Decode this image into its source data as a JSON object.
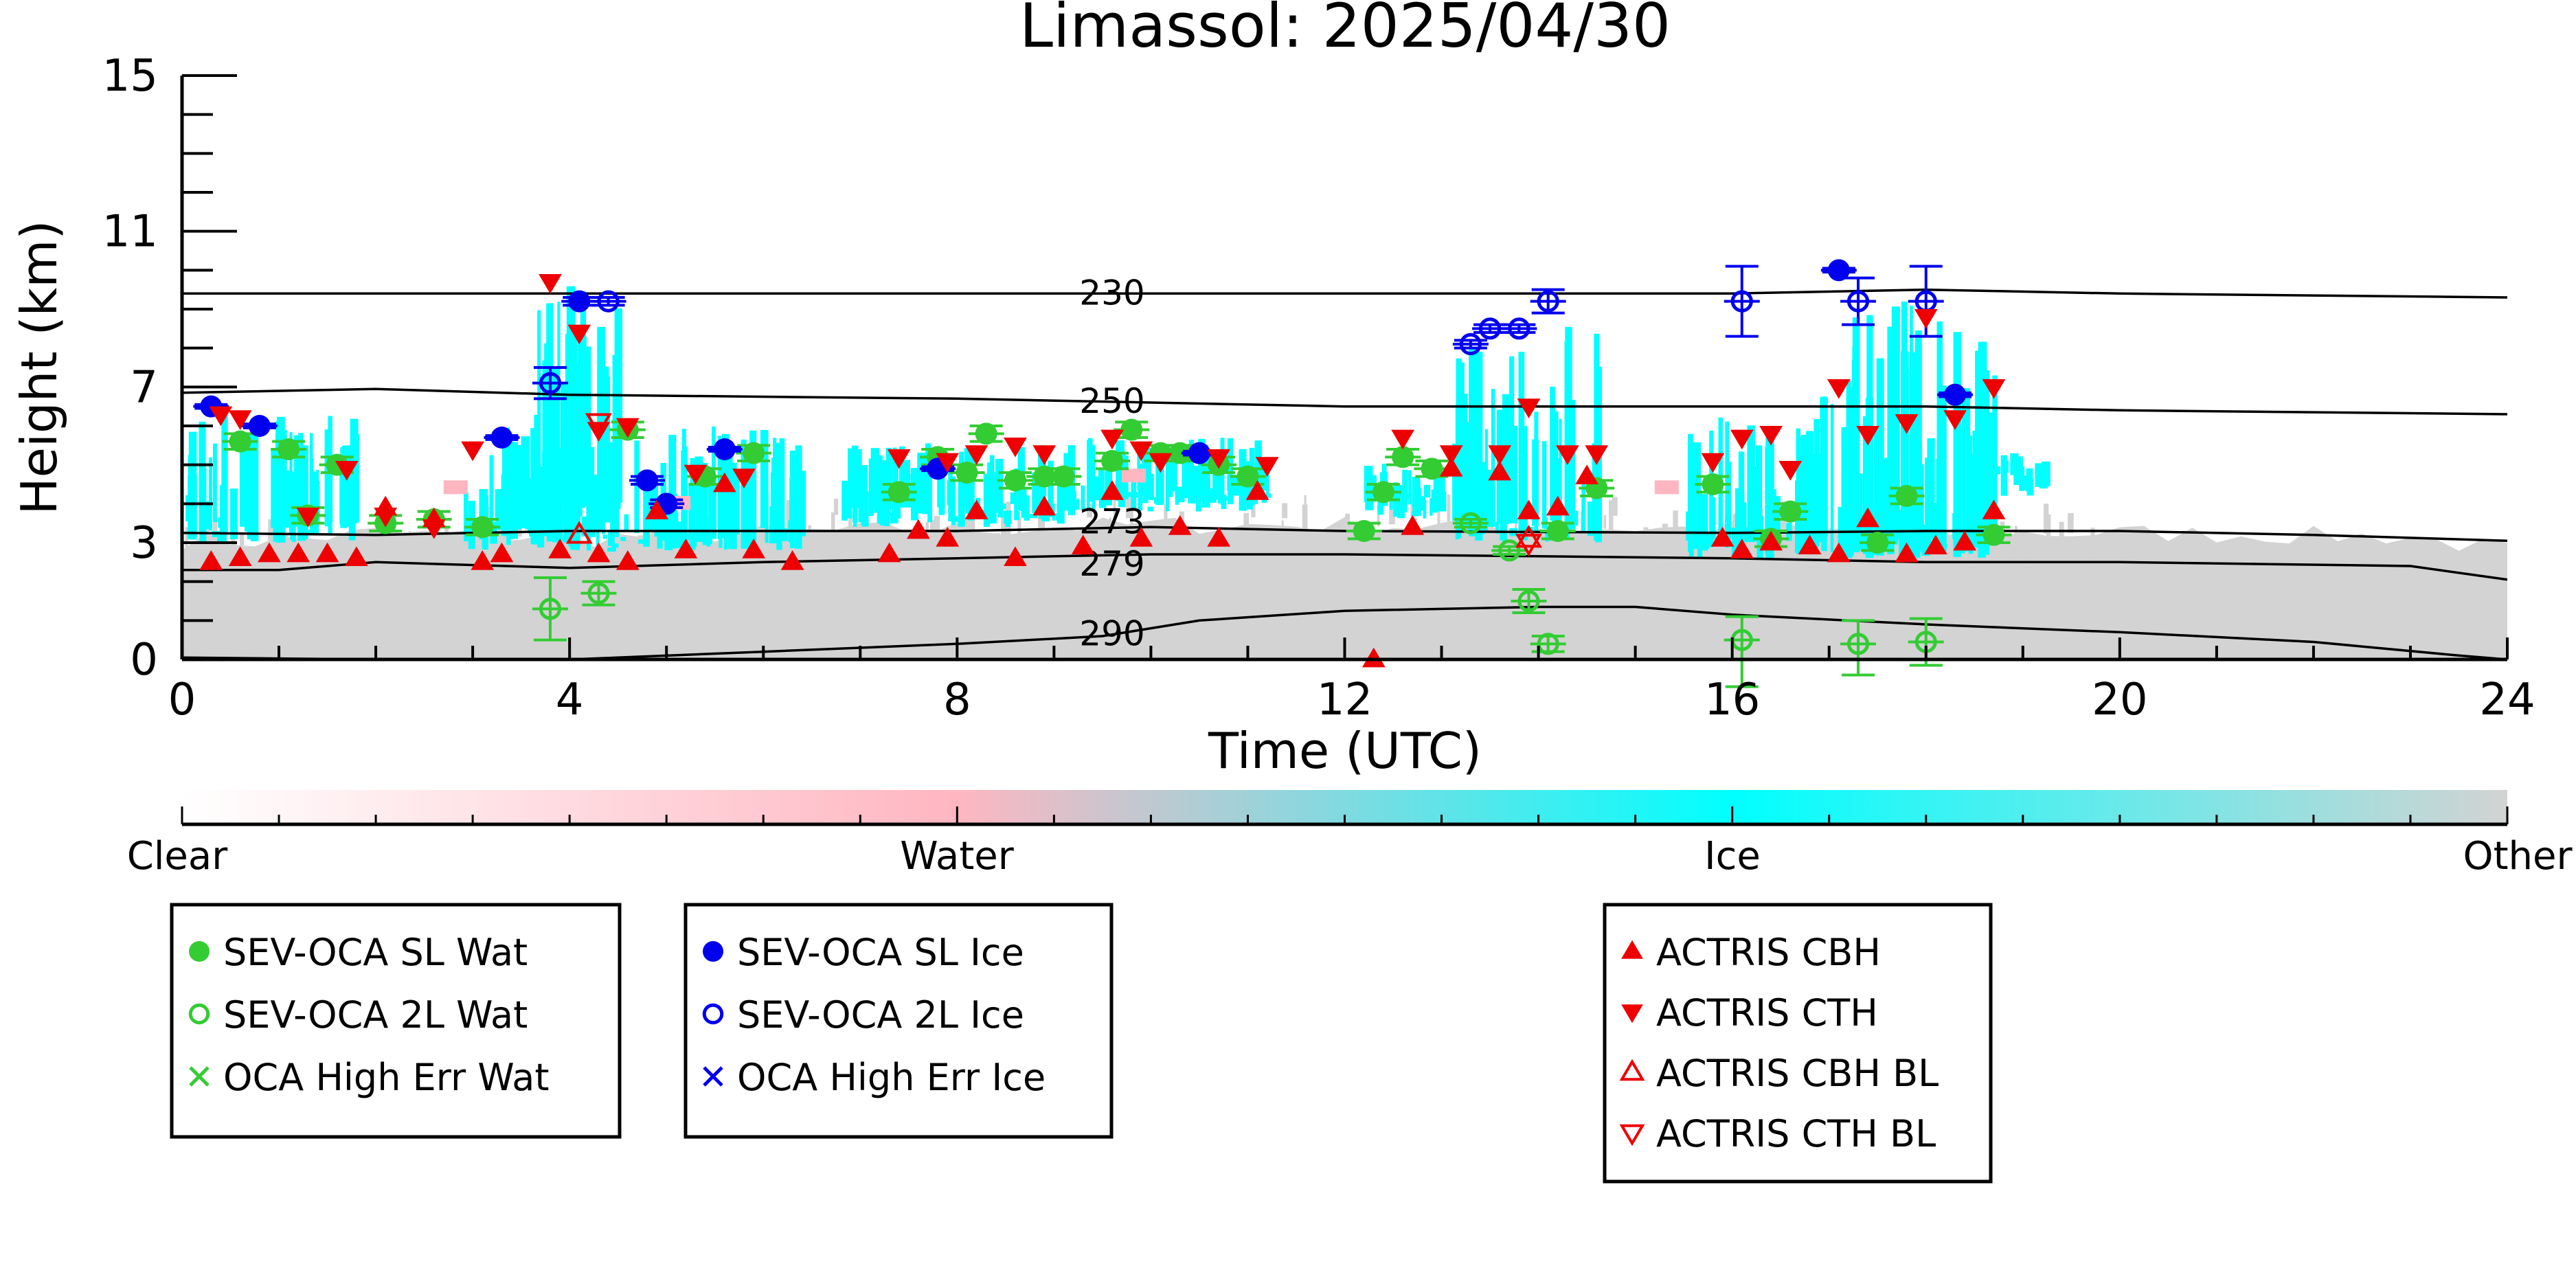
{
  "chart_data": {
    "type": "scatter",
    "title": "Limassol: 2025/04/30",
    "xlabel": "Time (UTC)",
    "ylabel": "Height (km)",
    "xlim": [
      0,
      24
    ],
    "ylim": [
      0,
      15
    ],
    "xticks": [
      0,
      4,
      8,
      12,
      16,
      20,
      24
    ],
    "yticks": [
      0,
      3,
      7,
      11,
      15
    ],
    "colorbar": {
      "labels": [
        "Clear",
        "Water",
        "Ice",
        "Other"
      ],
      "colors": [
        "#ffffff",
        "#ffb6c1",
        "#00ffff",
        "#d3d3d3"
      ]
    },
    "isotherms": [
      {
        "label": "230",
        "x": [
          0,
          4,
          8,
          12,
          16,
          18,
          20,
          24
        ],
        "y": [
          9.4,
          9.4,
          9.4,
          9.4,
          9.4,
          9.5,
          9.4,
          9.3
        ]
      },
      {
        "label": "250",
        "x": [
          0,
          2,
          4,
          8,
          12,
          16,
          18,
          20,
          24
        ],
        "y": [
          6.85,
          6.95,
          6.8,
          6.7,
          6.5,
          6.5,
          6.5,
          6.4,
          6.3
        ]
      },
      {
        "label": "273",
        "x": [
          0,
          2,
          4,
          8,
          10,
          12,
          16,
          18,
          20,
          22,
          24
        ],
        "y": [
          3.25,
          3.2,
          3.3,
          3.3,
          3.4,
          3.3,
          3.25,
          3.3,
          3.3,
          3.2,
          3.05
        ]
      },
      {
        "label": "279",
        "x": [
          0,
          1,
          2,
          4,
          6,
          8,
          10,
          12,
          14,
          16,
          18,
          20,
          23,
          24
        ],
        "y": [
          2.3,
          2.3,
          2.5,
          2.35,
          2.5,
          2.6,
          2.7,
          2.7,
          2.65,
          2.6,
          2.5,
          2.5,
          2.4,
          2.05
        ]
      },
      {
        "label": "290",
        "x": [
          0,
          2,
          4,
          6,
          8,
          9.5,
          10.5,
          12,
          14,
          15,
          16,
          18,
          20,
          22,
          23.5,
          24
        ],
        "y": [
          0.05,
          0,
          0,
          0.2,
          0.4,
          0.6,
          1.0,
          1.25,
          1.35,
          1.35,
          1.15,
          0.9,
          0.7,
          0.45,
          0.1,
          0.0
        ]
      }
    ],
    "series": [
      {
        "name": "SEV-OCA SL Wat",
        "color": "#33cc33",
        "marker": "filled-circle",
        "points": [
          [
            0.6,
            5.6
          ],
          [
            1.1,
            5.4
          ],
          [
            1.6,
            5.0
          ],
          [
            2.1,
            3.5
          ],
          [
            2.6,
            3.6
          ],
          [
            3.1,
            3.4
          ],
          [
            1.3,
            3.7
          ],
          [
            4.6,
            5.9
          ],
          [
            5.4,
            4.7
          ],
          [
            5.9,
            5.3
          ],
          [
            7.4,
            4.3
          ],
          [
            7.8,
            5.2
          ],
          [
            8.3,
            5.8
          ],
          [
            8.1,
            4.8
          ],
          [
            8.6,
            4.6
          ],
          [
            8.9,
            4.7
          ],
          [
            9.1,
            4.7
          ],
          [
            9.6,
            5.1
          ],
          [
            9.8,
            5.9
          ],
          [
            10.1,
            5.3
          ],
          [
            10.3,
            5.3
          ],
          [
            10.7,
            5.0
          ],
          [
            11.0,
            4.7
          ],
          [
            12.2,
            3.3
          ],
          [
            12.4,
            4.3
          ],
          [
            12.6,
            5.2
          ],
          [
            12.9,
            4.9
          ],
          [
            14.2,
            3.3
          ],
          [
            14.6,
            4.4
          ],
          [
            15.8,
            4.5
          ],
          [
            16.4,
            3.1
          ],
          [
            16.6,
            3.8
          ],
          [
            17.5,
            3.0
          ],
          [
            17.8,
            4.2
          ],
          [
            18.7,
            3.2
          ]
        ],
        "err": [
          [
            0.2,
            0.2
          ],
          [
            0.2,
            0.2
          ],
          [
            0.2,
            0.2
          ],
          [
            0.2,
            0.2
          ],
          [
            0.2,
            0.2
          ],
          [
            0.2,
            0.2
          ],
          [
            0.2,
            0.2
          ],
          [
            0.2,
            0.2
          ],
          [
            0.2,
            0.2
          ],
          [
            0.2,
            0.2
          ],
          [
            0.2,
            0.2
          ],
          [
            0.2,
            0.2
          ],
          [
            0.2,
            0.2
          ],
          [
            0.2,
            0.2
          ],
          [
            0.2,
            0.2
          ],
          [
            0.2,
            0.2
          ],
          [
            0.2,
            0.2
          ],
          [
            0.2,
            0.2
          ],
          [
            0.2,
            0.2
          ],
          [
            0.2,
            0.2
          ],
          [
            0.2,
            0.2
          ],
          [
            0.2,
            0.2
          ],
          [
            0.2,
            0.2
          ],
          [
            0.2,
            0.2
          ],
          [
            0.2,
            0.2
          ],
          [
            0.2,
            0.2
          ],
          [
            0.2,
            0.2
          ],
          [
            0.2,
            0.2
          ],
          [
            0.2,
            0.2
          ],
          [
            0.2,
            0.2
          ],
          [
            0.2,
            0.2
          ],
          [
            0.2,
            0.2
          ],
          [
            0.2,
            0.2
          ],
          [
            0.2,
            0.2
          ],
          [
            0.2,
            0.2
          ]
        ]
      },
      {
        "name": "SEV-OCA 2L Wat",
        "color": "#33cc33",
        "marker": "open-circle",
        "points": [
          [
            3.8,
            1.3
          ],
          [
            4.3,
            1.7
          ],
          [
            13.3,
            3.5
          ],
          [
            13.7,
            2.8
          ],
          [
            13.9,
            1.5
          ],
          [
            14.1,
            0.4
          ],
          [
            16.1,
            0.5
          ],
          [
            17.3,
            0.4
          ],
          [
            18.0,
            0.45
          ]
        ],
        "err": [
          [
            0.8,
            0.8
          ],
          [
            0.3,
            0.3
          ],
          [
            0.1,
            0.1
          ],
          [
            0.1,
            0.1
          ],
          [
            0.3,
            0.3
          ],
          [
            0.2,
            0.2
          ],
          [
            1.2,
            0.6
          ],
          [
            0.8,
            0.6
          ],
          [
            0.6,
            0.6
          ]
        ]
      },
      {
        "name": "SEV-OCA SL Ice",
        "color": "#0000ee",
        "marker": "filled-circle",
        "points": [
          [
            0.3,
            6.5
          ],
          [
            0.8,
            6.0
          ],
          [
            3.3,
            5.7
          ],
          [
            4.1,
            9.2
          ],
          [
            4.8,
            4.6
          ],
          [
            5.0,
            4.0
          ],
          [
            5.6,
            5.4
          ],
          [
            7.8,
            4.9
          ],
          [
            10.5,
            5.3
          ],
          [
            17.1,
            10.0
          ],
          [
            18.3,
            6.8
          ]
        ],
        "err": [
          [
            0.05,
            0.05
          ],
          [
            0.05,
            0.05
          ],
          [
            0.05,
            0.05
          ],
          [
            0.1,
            0.1
          ],
          [
            0.1,
            0.1
          ],
          [
            0.1,
            0.1
          ],
          [
            0.05,
            0.05
          ],
          [
            0.05,
            0.05
          ],
          [
            0.05,
            0.05
          ],
          [
            0.05,
            0.05
          ],
          [
            0.05,
            0.05
          ]
        ]
      },
      {
        "name": "SEV-OCA 2L Ice",
        "color": "#0000ee",
        "marker": "open-circle",
        "points": [
          [
            3.8,
            7.1
          ],
          [
            4.4,
            9.2
          ],
          [
            13.3,
            8.1
          ],
          [
            13.5,
            8.5
          ],
          [
            13.8,
            8.5
          ],
          [
            14.1,
            9.2
          ],
          [
            16.1,
            9.2
          ],
          [
            17.3,
            9.2
          ],
          [
            18.0,
            9.2
          ]
        ],
        "err": [
          [
            0.4,
            0.4
          ],
          [
            0.1,
            0.1
          ],
          [
            0.1,
            0.1
          ],
          [
            0.1,
            0.1
          ],
          [
            0.1,
            0.1
          ],
          [
            0.3,
            0.3
          ],
          [
            0.9,
            0.9
          ],
          [
            0.6,
            0.6
          ],
          [
            0.9,
            0.9
          ]
        ]
      },
      {
        "name": "OCA High Err Wat",
        "color": "#33cc33",
        "marker": "x",
        "points": []
      },
      {
        "name": "OCA High Err Ice",
        "color": "#0000ee",
        "marker": "x",
        "points": []
      },
      {
        "name": "ACTRIS CBH",
        "color": "#ee0000",
        "marker": "filled-triangle-up",
        "points": [
          [
            0.3,
            2.5
          ],
          [
            0.6,
            2.6
          ],
          [
            0.9,
            2.7
          ],
          [
            1.2,
            2.7
          ],
          [
            1.5,
            2.7
          ],
          [
            1.8,
            2.6
          ],
          [
            2.1,
            3.9
          ],
          [
            2.6,
            3.6
          ],
          [
            3.1,
            2.5
          ],
          [
            3.3,
            2.7
          ],
          [
            3.9,
            2.8
          ],
          [
            4.3,
            2.7
          ],
          [
            4.6,
            2.5
          ],
          [
            4.9,
            3.8
          ],
          [
            5.2,
            2.8
          ],
          [
            5.6,
            4.5
          ],
          [
            5.9,
            2.8
          ],
          [
            6.3,
            2.5
          ],
          [
            7.3,
            2.7
          ],
          [
            7.6,
            3.3
          ],
          [
            7.9,
            3.1
          ],
          [
            8.2,
            3.8
          ],
          [
            8.6,
            2.6
          ],
          [
            8.9,
            3.9
          ],
          [
            9.3,
            2.9
          ],
          [
            9.6,
            4.3
          ],
          [
            9.9,
            3.1
          ],
          [
            10.3,
            3.4
          ],
          [
            10.7,
            3.1
          ],
          [
            11.1,
            4.3
          ],
          [
            12.3,
            0.0
          ],
          [
            12.7,
            3.4
          ],
          [
            13.1,
            4.9
          ],
          [
            13.6,
            4.8
          ],
          [
            13.9,
            3.8
          ],
          [
            14.2,
            3.9
          ],
          [
            14.5,
            4.7
          ],
          [
            15.9,
            3.1
          ],
          [
            16.1,
            2.8
          ],
          [
            16.4,
            3.0
          ],
          [
            16.8,
            2.9
          ],
          [
            17.1,
            2.7
          ],
          [
            17.4,
            3.6
          ],
          [
            17.8,
            2.7
          ],
          [
            18.1,
            2.9
          ],
          [
            18.4,
            3.0
          ],
          [
            18.7,
            3.8
          ]
        ]
      },
      {
        "name": "ACTRIS CTH",
        "color": "#ee0000",
        "marker": "filled-triangle-down",
        "points": [
          [
            0.4,
            6.3
          ],
          [
            0.6,
            6.2
          ],
          [
            1.3,
            3.7
          ],
          [
            1.7,
            4.9
          ],
          [
            2.1,
            3.7
          ],
          [
            2.6,
            3.4
          ],
          [
            3.0,
            5.4
          ],
          [
            3.8,
            9.7
          ],
          [
            4.1,
            8.4
          ],
          [
            4.3,
            5.9
          ],
          [
            4.6,
            6.0
          ],
          [
            5.3,
            4.8
          ],
          [
            5.8,
            4.7
          ],
          [
            7.4,
            5.2
          ],
          [
            7.9,
            5.1
          ],
          [
            8.2,
            5.3
          ],
          [
            8.6,
            5.5
          ],
          [
            8.9,
            5.3
          ],
          [
            9.6,
            5.7
          ],
          [
            9.9,
            5.4
          ],
          [
            10.1,
            5.1
          ],
          [
            10.7,
            5.2
          ],
          [
            11.2,
            5.0
          ],
          [
            12.6,
            5.7
          ],
          [
            13.1,
            5.3
          ],
          [
            13.6,
            5.3
          ],
          [
            13.9,
            6.5
          ],
          [
            14.3,
            5.3
          ],
          [
            14.6,
            5.3
          ],
          [
            15.8,
            5.1
          ],
          [
            16.1,
            5.7
          ],
          [
            16.4,
            5.8
          ],
          [
            16.6,
            4.9
          ],
          [
            17.1,
            7.0
          ],
          [
            17.4,
            5.8
          ],
          [
            17.8,
            6.1
          ],
          [
            18.0,
            8.8
          ],
          [
            18.3,
            6.2
          ],
          [
            18.7,
            7.0
          ]
        ]
      },
      {
        "name": "ACTRIS CBH BL",
        "color": "#ee0000",
        "marker": "open-triangle-up",
        "points": [
          [
            4.1,
            3.2
          ],
          [
            13.9,
            3.1
          ]
        ]
      },
      {
        "name": "ACTRIS CTH BL",
        "color": "#ee0000",
        "marker": "open-triangle-down",
        "points": [
          [
            4.3,
            6.1
          ],
          [
            13.9,
            3.0
          ]
        ]
      }
    ],
    "legends": [
      [
        "SEV-OCA SL Wat",
        "SEV-OCA 2L Wat",
        "OCA High Err Wat"
      ],
      [
        "SEV-OCA SL Ice",
        "SEV-OCA 2L Ice",
        "OCA High Err Ice"
      ],
      [
        "ACTRIS CBH",
        "ACTRIS CTH",
        "ACTRIS CBH BL",
        "ACTRIS CTH BL"
      ]
    ]
  }
}
